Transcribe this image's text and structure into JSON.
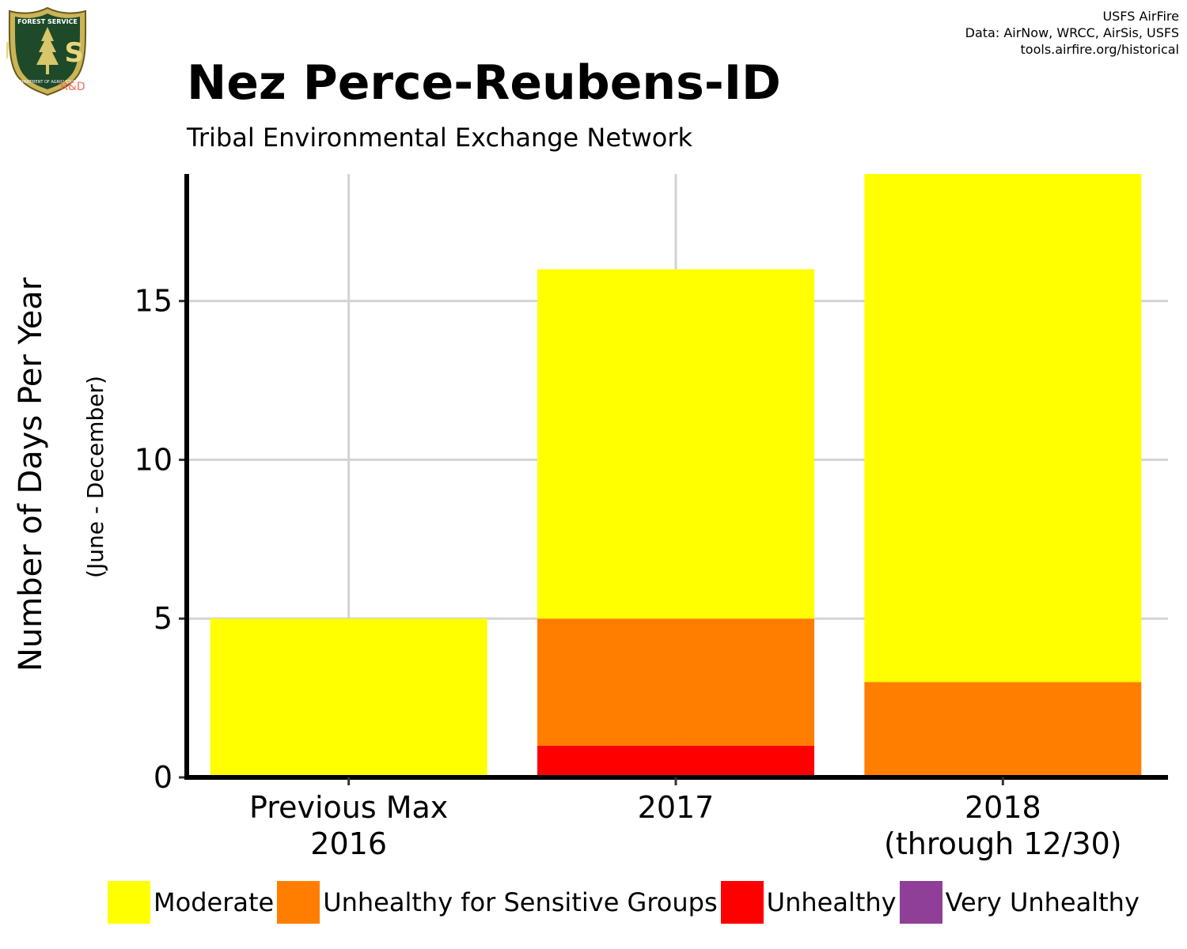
{
  "header": {
    "title": "Nez Perce-Reubens-ID",
    "subtitle": "Tribal Environmental Exchange Network",
    "credits": [
      "USFS AirFire",
      "Data: AirNow, WRCC, AirSis, USFS",
      "tools.airfire.org/historical"
    ]
  },
  "logo": {
    "top_text": "FOREST SERVICE",
    "letters": "U S",
    "bottom_text": "DEPARTMENT OF AGRICULTURE",
    "tag": "R&D"
  },
  "chart_data": {
    "type": "bar",
    "stacked": true,
    "categories": [
      [
        "Previous Max",
        "2016"
      ],
      [
        "2017"
      ],
      [
        "2018",
        "(through 12/30)"
      ]
    ],
    "series": [
      {
        "name": "Unhealthy",
        "color": "#ff0000",
        "values": [
          0,
          1,
          0
        ]
      },
      {
        "name": "Unhealthy for Sensitive Groups",
        "color": "#ff7e00",
        "values": [
          0,
          4,
          3
        ]
      },
      {
        "name": "Moderate",
        "color": "#ffff00",
        "values": [
          5,
          11,
          16
        ]
      }
    ],
    "ylabel": "Number of Days Per Year",
    "ylabel_sub": "(June - December)",
    "yticks": [
      0,
      5,
      10,
      15
    ],
    "ylim": [
      0,
      19
    ],
    "grid": true,
    "legend": {
      "position": "bottom",
      "items": [
        {
          "label": "Moderate",
          "color": "#ffff00"
        },
        {
          "label": "Unhealthy for Sensitive Groups",
          "color": "#ff7e00"
        },
        {
          "label": "Unhealthy",
          "color": "#ff0000"
        },
        {
          "label": "Very Unhealthy",
          "color": "#8f3f97"
        }
      ]
    }
  }
}
